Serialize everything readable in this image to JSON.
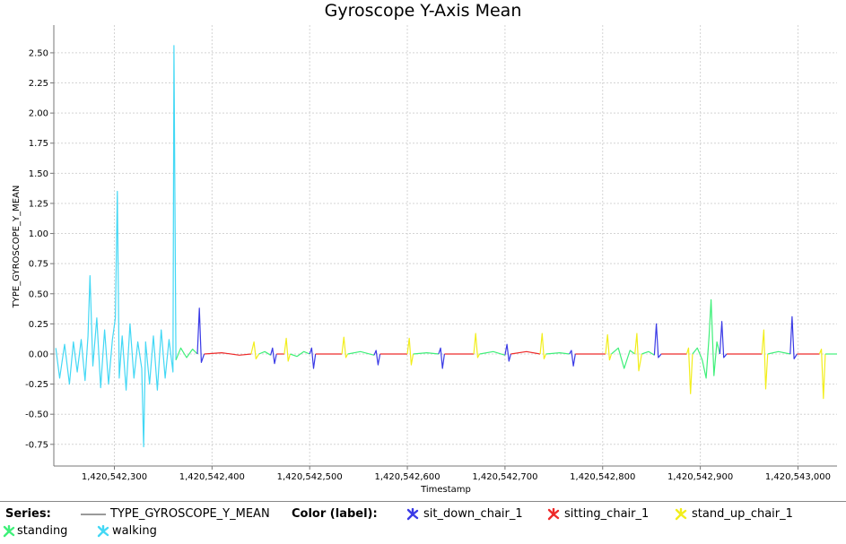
{
  "chart_data": {
    "type": "line",
    "title": "Gyroscope Y-Axis Mean",
    "xlabel": "Timestamp",
    "ylabel": "TYPE_GYROSCOPE_Y_MEAN",
    "xlim": [
      1420542238,
      1420543040
    ],
    "ylim": [
      -0.93,
      2.73
    ],
    "x_ticks": [
      1420542300,
      1420542400,
      1420542500,
      1420542600,
      1420542700,
      1420542800,
      1420542900,
      1420543000
    ],
    "x_tick_labels": [
      "1,420,542,300",
      "1,420,542,400",
      "1,420,542,500",
      "1,420,542,600",
      "1,420,542,700",
      "1,420,542,800",
      "1,420,542,900",
      "1,420,543,000"
    ],
    "y_ticks": [
      -0.75,
      -0.5,
      -0.25,
      0.0,
      0.25,
      0.5,
      0.75,
      1.0,
      1.25,
      1.5,
      1.75,
      2.0,
      2.25,
      2.5
    ],
    "y_tick_labels": [
      "-0.75",
      "-0.50",
      "-0.25",
      "0.00",
      "0.25",
      "0.50",
      "0.75",
      "1.00",
      "1.25",
      "1.50",
      "1.75",
      "2.00",
      "2.25",
      "2.50"
    ],
    "grid": true,
    "legend_position": "bottom",
    "series_label": "Series:",
    "color_label": "Color (label):",
    "series": [
      {
        "name": "TYPE_GYROSCOPE_Y_MEAN",
        "color": "#9a9a9a"
      }
    ],
    "labels": [
      {
        "name": "sit_down_chair_1",
        "color": "#3a3ae6"
      },
      {
        "name": "sitting_chair_1",
        "color": "#ee2a2a"
      },
      {
        "name": "stand_up_chair_1",
        "color": "#f2ee1c"
      },
      {
        "name": "standing",
        "color": "#3ff07a"
      },
      {
        "name": "walking",
        "color": "#43d8f5"
      }
    ],
    "segments": [
      {
        "label": "walking",
        "x": [
          1420542240,
          1420542244,
          1420542249,
          1420542254,
          1420542258,
          1420542262,
          1420542266,
          1420542270,
          1420542273,
          1420542275,
          1420542278,
          1420542282,
          1420542286,
          1420542290,
          1420542294,
          1420542298,
          1420542301,
          1420542303,
          1420542305,
          1420542308,
          1420542312,
          1420542316,
          1420542320,
          1420542324,
          1420542328,
          1420542330,
          1420542332,
          1420542336,
          1420542340,
          1420542344,
          1420542348,
          1420542352,
          1420542356,
          1420542360,
          1420542361,
          1420542363
        ],
        "y": [
          0.05,
          -0.2,
          0.08,
          -0.25,
          0.1,
          -0.15,
          0.12,
          -0.22,
          0.15,
          0.65,
          -0.1,
          0.3,
          -0.28,
          0.2,
          -0.25,
          0.12,
          0.3,
          1.35,
          -0.2,
          0.15,
          -0.3,
          0.25,
          -0.2,
          0.1,
          -0.12,
          -0.77,
          0.1,
          -0.25,
          0.15,
          -0.3,
          0.2,
          -0.2,
          0.12,
          -0.15,
          2.56,
          -0.05
        ]
      },
      {
        "label": "standing",
        "x": [
          1420542363,
          1420542368,
          1420542374,
          1420542380,
          1420542385
        ],
        "y": [
          -0.05,
          0.05,
          -0.03,
          0.04,
          0.0
        ]
      },
      {
        "label": "sit_down_chair_1",
        "x": [
          1420542385,
          1420542387,
          1420542389,
          1420542392
        ],
        "y": [
          0.0,
          0.38,
          -0.07,
          0.0
        ]
      },
      {
        "label": "sitting_chair_1",
        "x": [
          1420542392,
          1420542410,
          1420542428,
          1420542440
        ],
        "y": [
          0.0,
          0.01,
          -0.01,
          0.0
        ]
      },
      {
        "label": "stand_up_chair_1",
        "x": [
          1420542440,
          1420542443,
          1420542445,
          1420542448
        ],
        "y": [
          0.0,
          0.1,
          -0.04,
          0.0
        ]
      },
      {
        "label": "standing",
        "x": [
          1420542448,
          1420542454,
          1420542460
        ],
        "y": [
          0.0,
          0.02,
          -0.01
        ]
      },
      {
        "label": "sit_down_chair_1",
        "x": [
          1420542460,
          1420542462,
          1420542464,
          1420542466
        ],
        "y": [
          -0.01,
          0.05,
          -0.08,
          0.0
        ]
      },
      {
        "label": "sitting_chair_1",
        "x": [
          1420542466,
          1420542474
        ],
        "y": [
          0.0,
          0.0
        ]
      },
      {
        "label": "stand_up_chair_1",
        "x": [
          1420542474,
          1420542476,
          1420542478,
          1420542480
        ],
        "y": [
          0.0,
          0.13,
          -0.06,
          0.0
        ]
      },
      {
        "label": "standing",
        "x": [
          1420542480,
          1420542487,
          1420542494,
          1420542500
        ],
        "y": [
          0.0,
          -0.02,
          0.02,
          0.0
        ]
      },
      {
        "label": "sit_down_chair_1",
        "x": [
          1420542500,
          1420542502,
          1420542504,
          1420542506
        ],
        "y": [
          0.0,
          0.05,
          -0.12,
          0.0
        ]
      },
      {
        "label": "sitting_chair_1",
        "x": [
          1420542506,
          1420542520,
          1420542533
        ],
        "y": [
          0.0,
          0.0,
          0.0
        ]
      },
      {
        "label": "stand_up_chair_1",
        "x": [
          1420542533,
          1420542535,
          1420542537,
          1420542539
        ],
        "y": [
          0.0,
          0.14,
          -0.03,
          0.0
        ]
      },
      {
        "label": "standing",
        "x": [
          1420542539,
          1420542552,
          1420542566
        ],
        "y": [
          0.0,
          0.02,
          -0.01
        ]
      },
      {
        "label": "sit_down_chair_1",
        "x": [
          1420542566,
          1420542568,
          1420542570,
          1420542572
        ],
        "y": [
          -0.01,
          0.03,
          -0.09,
          0.0
        ]
      },
      {
        "label": "sitting_chair_1",
        "x": [
          1420542572,
          1420542588,
          1420542600
        ],
        "y": [
          0.0,
          0.0,
          0.0
        ]
      },
      {
        "label": "stand_up_chair_1",
        "x": [
          1420542600,
          1420542602,
          1420542604,
          1420542606
        ],
        "y": [
          0.0,
          0.13,
          -0.09,
          0.0
        ]
      },
      {
        "label": "standing",
        "x": [
          1420542606,
          1420542620,
          1420542632
        ],
        "y": [
          0.0,
          0.01,
          0.0
        ]
      },
      {
        "label": "sit_down_chair_1",
        "x": [
          1420542632,
          1420542634,
          1420542636,
          1420542638
        ],
        "y": [
          0.0,
          0.05,
          -0.12,
          0.0
        ]
      },
      {
        "label": "sitting_chair_1",
        "x": [
          1420542638,
          1420542654,
          1420542668
        ],
        "y": [
          0.0,
          0.0,
          0.0
        ]
      },
      {
        "label": "stand_up_chair_1",
        "x": [
          1420542668,
          1420542670,
          1420542672,
          1420542674
        ],
        "y": [
          0.0,
          0.17,
          -0.03,
          0.0
        ]
      },
      {
        "label": "standing",
        "x": [
          1420542674,
          1420542688,
          1420542700
        ],
        "y": [
          0.0,
          0.02,
          -0.01
        ]
      },
      {
        "label": "sit_down_chair_1",
        "x": [
          1420542700,
          1420542702,
          1420542704,
          1420542706
        ],
        "y": [
          -0.01,
          0.08,
          -0.06,
          0.0
        ]
      },
      {
        "label": "sitting_chair_1",
        "x": [
          1420542706,
          1420542722,
          1420542736
        ],
        "y": [
          0.0,
          0.02,
          0.0
        ]
      },
      {
        "label": "stand_up_chair_1",
        "x": [
          1420542736,
          1420542738,
          1420542740,
          1420542742
        ],
        "y": [
          0.0,
          0.17,
          -0.04,
          0.0
        ]
      },
      {
        "label": "standing",
        "x": [
          1420542742,
          1420542756,
          1420542766
        ],
        "y": [
          0.0,
          0.01,
          0.0
        ]
      },
      {
        "label": "sit_down_chair_1",
        "x": [
          1420542766,
          1420542768,
          1420542770,
          1420542772
        ],
        "y": [
          0.0,
          0.03,
          -0.1,
          0.0
        ]
      },
      {
        "label": "sitting_chair_1",
        "x": [
          1420542772,
          1420542788,
          1420542803
        ],
        "y": [
          0.0,
          0.0,
          0.0
        ]
      },
      {
        "label": "stand_up_chair_1",
        "x": [
          1420542803,
          1420542805,
          1420542807,
          1420542809
        ],
        "y": [
          0.0,
          0.16,
          -0.05,
          0.0
        ]
      },
      {
        "label": "standing",
        "x": [
          1420542809,
          1420542816,
          1420542822,
          1420542828,
          1420542833
        ],
        "y": [
          0.0,
          0.05,
          -0.12,
          0.03,
          0.0
        ]
      },
      {
        "label": "stand_up_chair_1",
        "x": [
          1420542833,
          1420542835,
          1420542837,
          1420542840
        ],
        "y": [
          0.0,
          0.17,
          -0.14,
          0.0
        ]
      },
      {
        "label": "standing",
        "x": [
          1420542840,
          1420542847,
          1420542853
        ],
        "y": [
          0.0,
          0.02,
          -0.01
        ]
      },
      {
        "label": "sit_down_chair_1",
        "x": [
          1420542853,
          1420542855,
          1420542857,
          1420542860
        ],
        "y": [
          -0.01,
          0.25,
          -0.03,
          0.0
        ]
      },
      {
        "label": "sitting_chair_1",
        "x": [
          1420542860,
          1420542874,
          1420542886
        ],
        "y": [
          0.0,
          0.0,
          0.0
        ]
      },
      {
        "label": "stand_up_chair_1",
        "x": [
          1420542886,
          1420542888,
          1420542890,
          1420542892
        ],
        "y": [
          0.0,
          0.05,
          -0.33,
          0.0
        ]
      },
      {
        "label": "standing",
        "x": [
          1420542892,
          1420542897,
          1420542902,
          1420542906,
          1420542909,
          1420542911,
          1420542914,
          1420542917,
          1420542920
        ],
        "y": [
          0.0,
          0.05,
          -0.05,
          -0.2,
          0.15,
          0.45,
          -0.18,
          0.1,
          0.0
        ]
      },
      {
        "label": "sit_down_chair_1",
        "x": [
          1420542920,
          1420542922,
          1420542924,
          1420542927
        ],
        "y": [
          0.0,
          0.27,
          -0.03,
          0.0
        ]
      },
      {
        "label": "sitting_chair_1",
        "x": [
          1420542927,
          1420542946,
          1420542963
        ],
        "y": [
          0.0,
          0.0,
          0.0
        ]
      },
      {
        "label": "stand_up_chair_1",
        "x": [
          1420542963,
          1420542965,
          1420542967,
          1420542969
        ],
        "y": [
          0.0,
          0.2,
          -0.29,
          0.0
        ]
      },
      {
        "label": "standing",
        "x": [
          1420542969,
          1420542980,
          1420542992
        ],
        "y": [
          0.0,
          0.02,
          0.0
        ]
      },
      {
        "label": "sit_down_chair_1",
        "x": [
          1420542992,
          1420542994,
          1420542996,
          1420542999
        ],
        "y": [
          0.0,
          0.31,
          -0.04,
          0.0
        ]
      },
      {
        "label": "sitting_chair_1",
        "x": [
          1420542999,
          1420543010,
          1420543022
        ],
        "y": [
          0.0,
          0.0,
          0.0
        ]
      },
      {
        "label": "stand_up_chair_1",
        "x": [
          1420543022,
          1420543024,
          1420543026,
          1420543028
        ],
        "y": [
          0.0,
          0.04,
          -0.37,
          0.0
        ]
      },
      {
        "label": "standing",
        "x": [
          1420543028,
          1420543034,
          1420543040
        ],
        "y": [
          0.0,
          0.0,
          0.0
        ]
      }
    ]
  }
}
